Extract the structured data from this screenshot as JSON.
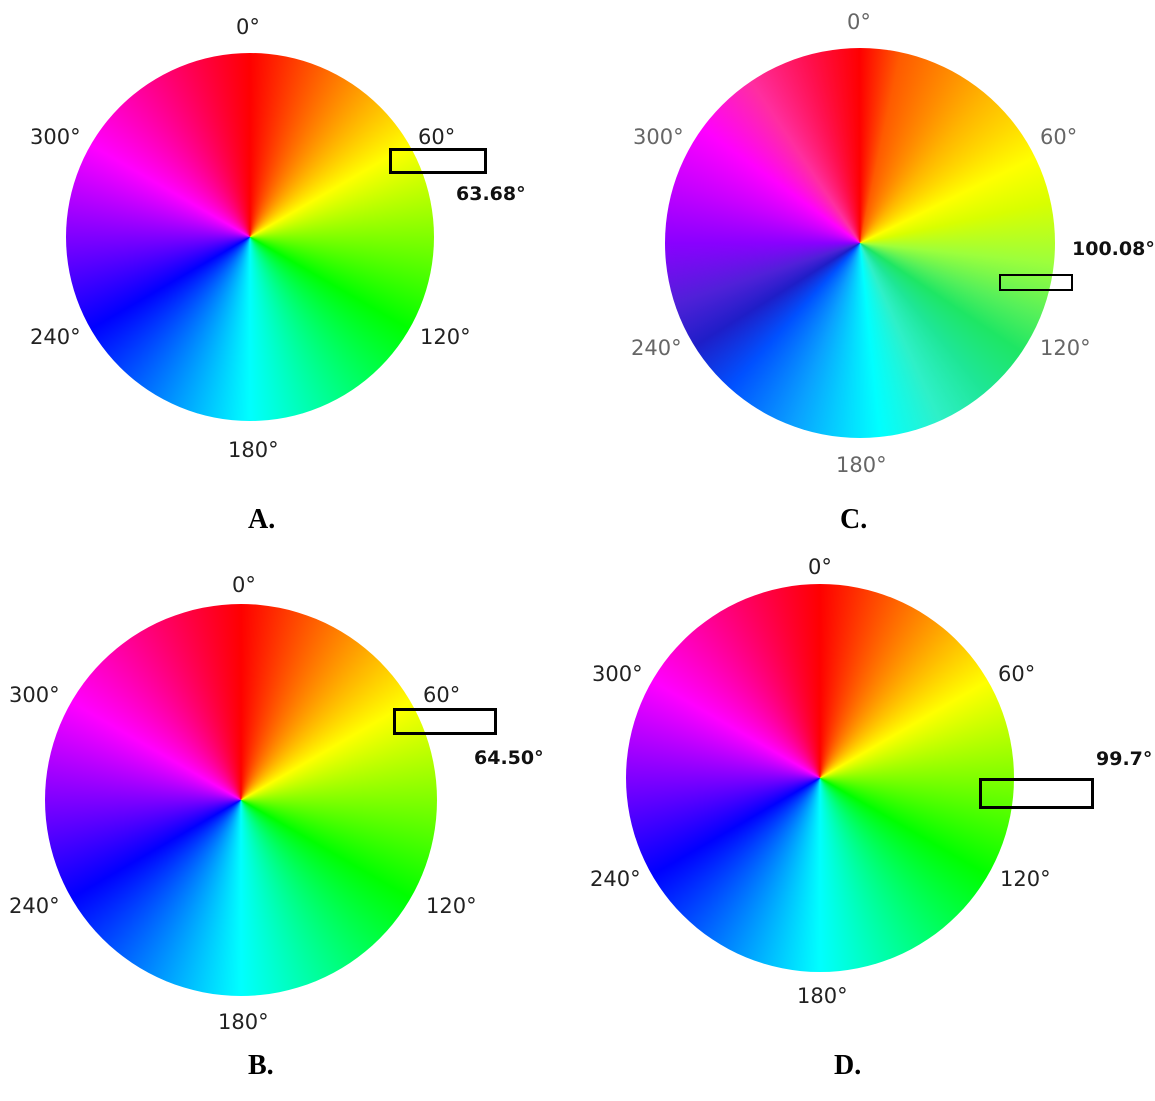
{
  "panels": [
    {
      "caption": "A.",
      "wheel_labels": [
        "0°",
        "60°",
        "120°",
        "180°",
        "240°",
        "300°"
      ],
      "highlight_value": "63.68°"
    },
    {
      "caption": "C.",
      "wheel_labels": [
        "0°",
        "60°",
        "120°",
        "180°",
        "240°",
        "300°"
      ],
      "highlight_value": "100.08°"
    },
    {
      "caption": "B.",
      "wheel_labels": [
        "0°",
        "60°",
        "120°",
        "180°",
        "240°",
        "300°"
      ],
      "highlight_value": "64.50°"
    },
    {
      "caption": "D.",
      "wheel_labels": [
        "0°",
        "60°",
        "120°",
        "180°",
        "240°",
        "300°"
      ],
      "highlight_value": "99.7°"
    }
  ]
}
